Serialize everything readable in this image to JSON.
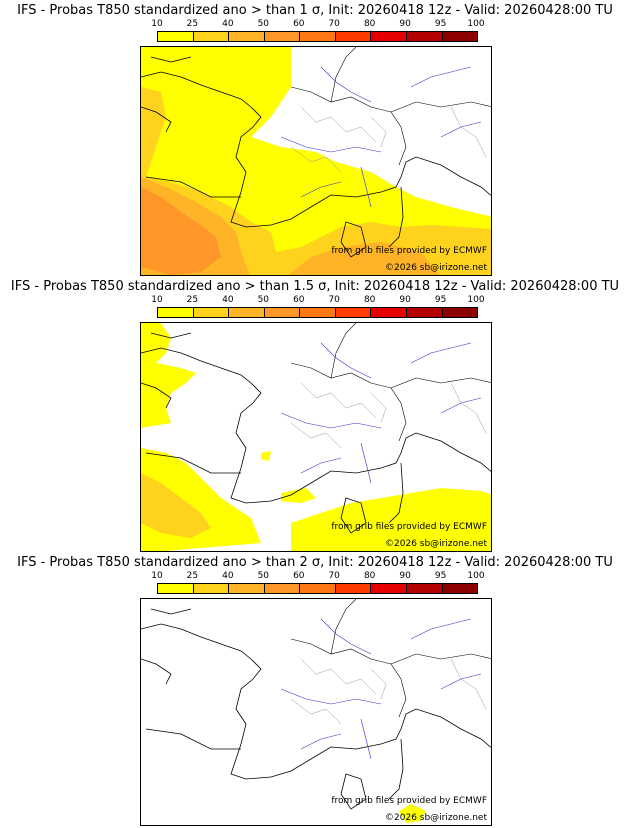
{
  "colorbar": {
    "ticks": [
      "10",
      "25",
      "40",
      "50",
      "60",
      "70",
      "80",
      "90",
      "95",
      "100"
    ],
    "colors": [
      "#ffff00",
      "#ffd21e",
      "#ffb428",
      "#ff9628",
      "#ff7814",
      "#ff3c00",
      "#e60000",
      "#b40000",
      "#8c0000"
    ]
  },
  "credits": {
    "source": "from grib files provided by ECMWF",
    "copyright": "©2026 sb@irizone.net"
  },
  "panels": [
    {
      "title": "IFS - Probas T850  standardized ano > than 1 σ, Init: 20260418 12z - Valid: 20260428:00 TU",
      "threshold_sigma": 1
    },
    {
      "title": "IFS - Probas T850  standardized ano > than 1.5 σ, Init: 20260418 12z - Valid: 20260428:00 TU",
      "threshold_sigma": 1.5
    },
    {
      "title": "IFS - Probas T850  standardized ano > than 2 σ, Init: 20260418 12z - Valid: 20260428:00 TU",
      "threshold_sigma": 2
    }
  ]
}
